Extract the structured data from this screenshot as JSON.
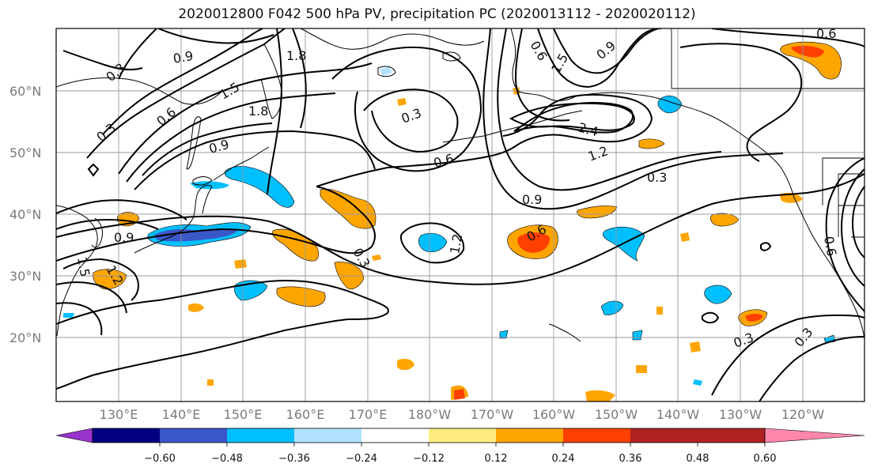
{
  "title": "2020012800 F042 500 hPa PV, precipitation PC (2020013112 - 2020020112)",
  "map": {
    "lat_labels": [
      "60°N",
      "50°N",
      "40°N",
      "30°N",
      "20°N"
    ],
    "lon_labels": [
      "130°E",
      "140°E",
      "150°E",
      "160°E",
      "170°E",
      "180°W",
      "170°W",
      "160°W",
      "150°W",
      "140°W",
      "130°W",
      "120°W"
    ],
    "pv_contour_labels": [
      {
        "text": "0.9",
        "name": "pv-label-0.9-aleutian-west"
      },
      {
        "text": "1.8",
        "name": "pv-label-1.8-bering"
      },
      {
        "text": "0.3",
        "name": "pv-label-0.3-siberia"
      },
      {
        "text": "1.5",
        "name": "pv-label-1.5-kamchatka"
      },
      {
        "text": "0.6",
        "name": "pv-label-0.6-okhotsk"
      },
      {
        "text": "1.8",
        "name": "pv-label-1.8-kuril"
      },
      {
        "text": "0.3",
        "name": "pv-label-0.3-okhotsk-west"
      },
      {
        "text": "0.9",
        "name": "pv-label-0.9-sakhalin"
      },
      {
        "text": "0.3",
        "name": "pv-label-0.3-aleutian-low"
      },
      {
        "text": "0.6",
        "name": "pv-label-0.6-aleutian-low"
      },
      {
        "text": "1.5",
        "name": "pv-label-1.5-alaska"
      },
      {
        "text": "0.9",
        "name": "pv-label-0.9-alaska"
      },
      {
        "text": "2.4",
        "name": "pv-label-2.4-gulf-low"
      },
      {
        "text": "1.2",
        "name": "pv-label-1.2-gulf-low"
      },
      {
        "text": "0.9",
        "name": "pv-label-0.9-gulf-trough"
      },
      {
        "text": "0.3",
        "name": "pv-label-0.3-northeast-pacific"
      },
      {
        "text": "0.6",
        "name": "pv-label-0.6-central-pacific"
      },
      {
        "text": "1.2",
        "name": "pv-label-1.2-cutoff-low"
      },
      {
        "text": "0.3",
        "name": "pv-label-0.3-subtropics"
      },
      {
        "text": "0.9",
        "name": "pv-label-0.9-japan"
      },
      {
        "text": "1.5",
        "name": "pv-label-1.5-china"
      },
      {
        "text": "1.2",
        "name": "pv-label-1.2-china"
      },
      {
        "text": "0.3",
        "name": "pv-label-0.3-east-pacific"
      },
      {
        "text": "0.3",
        "name": "pv-label-0.3-california"
      },
      {
        "text": "0.6",
        "name": "pv-label-0.6-canada"
      },
      {
        "text": "0.6",
        "name": "pv-label-0.6-west-us"
      },
      {
        "text": "0.6",
        "name": "pv-label-0.6-canada-east"
      }
    ]
  },
  "colorbar": {
    "tick_labels": [
      "−0.60",
      "−0.48",
      "−0.36",
      "−0.24",
      "−0.12",
      "0.12",
      "0.24",
      "0.36",
      "0.48",
      "0.60"
    ],
    "colors": [
      "#9933cc",
      "#000080",
      "#3a57c8",
      "#00bfff",
      "#b0e2ff",
      "#ffffff",
      "#ffec80",
      "#ffa500",
      "#ff4000",
      "#b22222",
      "#ff88aa"
    ]
  }
}
